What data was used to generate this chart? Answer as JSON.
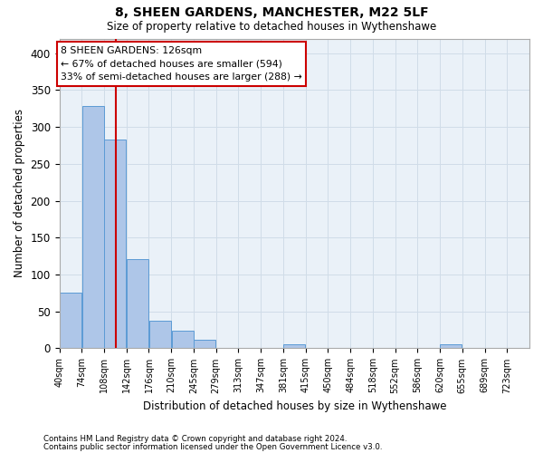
{
  "title1": "8, SHEEN GARDENS, MANCHESTER, M22 5LF",
  "title2": "Size of property relative to detached houses in Wythenshawe",
  "xlabel": "Distribution of detached houses by size in Wythenshawe",
  "ylabel": "Number of detached properties",
  "footer1": "Contains HM Land Registry data © Crown copyright and database right 2024.",
  "footer2": "Contains public sector information licensed under the Open Government Licence v3.0.",
  "annotation_line1": "8 SHEEN GARDENS: 126sqm",
  "annotation_line2": "← 67% of detached houses are smaller (594)",
  "annotation_line3": "33% of semi-detached houses are larger (288) →",
  "bin_labels": [
    "40sqm",
    "74sqm",
    "108sqm",
    "142sqm",
    "176sqm",
    "210sqm",
    "245sqm",
    "279sqm",
    "313sqm",
    "347sqm",
    "381sqm",
    "415sqm",
    "450sqm",
    "484sqm",
    "518sqm",
    "552sqm",
    "586sqm",
    "620sqm",
    "655sqm",
    "689sqm",
    "723sqm"
  ],
  "bar_heights": [
    75,
    328,
    283,
    121,
    38,
    24,
    12,
    0,
    0,
    0,
    5,
    0,
    0,
    0,
    0,
    0,
    0,
    5,
    0,
    0,
    0
  ],
  "bar_color": "#aec6e8",
  "bar_edge_color": "#5b9bd5",
  "ylim_max": 420,
  "grid_color": "#d0dce8",
  "background_color": "#eaf1f8",
  "red_line_color": "#cc0000",
  "annotation_box_color": "#ffffff",
  "annotation_box_edge": "#cc0000"
}
